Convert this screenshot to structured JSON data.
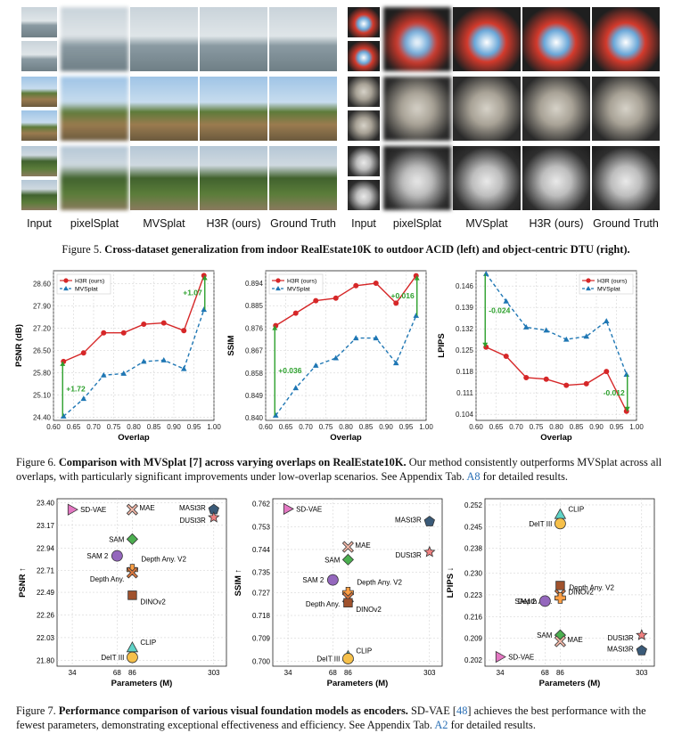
{
  "fig5": {
    "left_labels": [
      "Input",
      "pixelSplat",
      "MVSplat",
      "H3R (ours)",
      "Ground Truth"
    ],
    "right_labels": [
      "Input",
      "pixelSplat",
      "MVSplat",
      "H3R (ours)",
      "Ground Truth"
    ],
    "caption_prefix": "Figure 5.",
    "caption_bold": "Cross-dataset generalization from indoor RealEstate10K to outdoor ACID (left) and object-centric DTU (right)."
  },
  "fig6": {
    "caption_prefix": "Figure 6.",
    "caption_bold": "Comparison with MVSplat [7] across varying overlaps on RealEstate10K.",
    "caption_rest": " Our method consistently outperforms MVSplat across all overlaps, with particularly significant improvements under low-overlap scenarios. See Appendix Tab. ",
    "caption_link": "A8",
    "caption_end": " for detailed results."
  },
  "fig7": {
    "caption_prefix": "Figure 7.",
    "caption_bold": "Performance comparison of various visual foundation models as encoders.",
    "caption_rest1": " SD-VAE [",
    "caption_link1": "48",
    "caption_rest2": "] achieves the best performance with the fewest parameters, demonstrating exceptional effectiveness and efficiency. See Appendix Tab. ",
    "caption_link2": "A2",
    "caption_end": " for detailed results."
  },
  "colors": {
    "h3r": "#d62728",
    "mvsplat": "#1f77b4",
    "delta": "#2ca02c",
    "link": "#2a6fb5"
  },
  "chart_data": [
    {
      "type": "line",
      "id": "psnr_overlap",
      "xlabel": "Overlap",
      "ylabel": "PSNR (dB)",
      "xlim": [
        0.6,
        1.0
      ],
      "ylim": [
        24.3,
        29.0
      ],
      "xticks": [
        "0.60",
        "0.65",
        "0.70",
        "0.75",
        "0.80",
        "0.85",
        "0.90",
        "0.95",
        "1.00"
      ],
      "yticks": [
        "24.40",
        "25.10",
        "25.80",
        "26.50",
        "27.20",
        "27.90",
        "28.60"
      ],
      "grid": true,
      "legend": "top-left",
      "x": [
        0.625,
        0.675,
        0.725,
        0.775,
        0.825,
        0.875,
        0.925,
        0.975
      ],
      "series": [
        {
          "name": "H3R (ours)",
          "marker": "circle",
          "style": "solid",
          "values": [
            26.15,
            26.42,
            27.05,
            27.05,
            27.32,
            27.36,
            27.12,
            28.85
          ]
        },
        {
          "name": "MVSplat",
          "marker": "triangle",
          "style": "dashed",
          "values": [
            24.43,
            24.98,
            25.72,
            25.77,
            26.15,
            26.19,
            25.92,
            27.78
          ]
        }
      ],
      "annotations": [
        {
          "text": "+1.72",
          "x": 0.625
        },
        {
          "text": "+1.07",
          "x": 0.975
        }
      ]
    },
    {
      "type": "line",
      "id": "ssim_overlap",
      "xlabel": "Overlap",
      "ylabel": "SSIM",
      "xlim": [
        0.6,
        1.0
      ],
      "ylim": [
        0.839,
        0.899
      ],
      "xticks": [
        "0.60",
        "0.65",
        "0.70",
        "0.75",
        "0.80",
        "0.85",
        "0.90",
        "0.95",
        "1.00"
      ],
      "yticks": [
        "0.840",
        "0.849",
        "0.858",
        "0.867",
        "0.876",
        "0.885",
        "0.894"
      ],
      "grid": true,
      "legend": "top-left",
      "x": [
        0.625,
        0.675,
        0.725,
        0.775,
        0.825,
        0.875,
        0.925,
        0.975
      ],
      "series": [
        {
          "name": "H3R (ours)",
          "marker": "circle",
          "style": "solid",
          "values": [
            0.877,
            0.882,
            0.887,
            0.888,
            0.893,
            0.894,
            0.886,
            0.897
          ]
        },
        {
          "name": "MVSplat",
          "marker": "triangle",
          "style": "dashed",
          "values": [
            0.841,
            0.852,
            0.861,
            0.864,
            0.872,
            0.872,
            0.862,
            0.881
          ]
        }
      ],
      "annotations": [
        {
          "text": "+0.036",
          "x": 0.625
        },
        {
          "text": "+0.016",
          "x": 0.975
        }
      ]
    },
    {
      "type": "line",
      "id": "lpips_overlap",
      "xlabel": "Overlap",
      "ylabel": "LPIPS",
      "xlim": [
        0.6,
        1.0
      ],
      "ylim": [
        0.102,
        0.151
      ],
      "xticks": [
        "0.60",
        "0.65",
        "0.70",
        "0.75",
        "0.80",
        "0.85",
        "0.90",
        "0.95",
        "1.00"
      ],
      "yticks": [
        "0.104",
        "0.111",
        "0.118",
        "0.125",
        "0.132",
        "0.139",
        "0.146"
      ],
      "grid": true,
      "legend": "top-right",
      "x": [
        0.625,
        0.675,
        0.725,
        0.775,
        0.825,
        0.875,
        0.925,
        0.975
      ],
      "series": [
        {
          "name": "H3R (ours)",
          "marker": "circle",
          "style": "solid",
          "values": [
            0.126,
            0.123,
            0.116,
            0.1155,
            0.1135,
            0.114,
            0.118,
            0.105
          ]
        },
        {
          "name": "MVSplat",
          "marker": "triangle",
          "style": "dashed",
          "values": [
            0.15,
            0.141,
            0.1325,
            0.1315,
            0.1285,
            0.1295,
            0.1345,
            0.117
          ]
        }
      ],
      "annotations": [
        {
          "text": "-0.024",
          "x": 0.625
        },
        {
          "text": "-0.012",
          "x": 0.975
        }
      ]
    },
    {
      "type": "scatter",
      "id": "psnr_params",
      "xlabel": "Parameters (M)",
      "ylabel": "PSNR ↑",
      "xscale": "log",
      "xticks": [
        "34",
        "68",
        "86",
        "303"
      ],
      "yticks": [
        "21.80",
        "22.03",
        "22.26",
        "22.49",
        "22.71",
        "22.94",
        "23.17",
        "23.40"
      ],
      "ylim": [
        21.74,
        23.44
      ],
      "grid": true,
      "points": [
        {
          "label": "SD-VAE",
          "x": 34,
          "y": 23.33,
          "marker": "triangle-right",
          "color": "#e377c2"
        },
        {
          "label": "MAE",
          "x": 86,
          "y": 23.33,
          "marker": "x",
          "color": "#f2b8a8"
        },
        {
          "label": "MASt3R",
          "x": 303,
          "y": 23.33,
          "marker": "pentagon",
          "color": "#3a5a78"
        },
        {
          "label": "DUSt3R",
          "x": 303,
          "y": 23.25,
          "marker": "star",
          "color": "#f08080"
        },
        {
          "label": "SAM",
          "x": 86,
          "y": 23.03,
          "marker": "diamond",
          "color": "#4caf50"
        },
        {
          "label": "SAM 2",
          "x": 68,
          "y": 22.86,
          "marker": "circle",
          "color": "#9467bd"
        },
        {
          "label": "Depth Any. V2",
          "x": 86,
          "y": 22.72,
          "marker": "plus",
          "color": "#ff9f43"
        },
        {
          "label": "Depth Any.",
          "x": 86,
          "y": 22.69,
          "marker": "x",
          "color": "#d9773e"
        },
        {
          "label": "DINOv2",
          "x": 86,
          "y": 22.46,
          "marker": "square",
          "color": "#a0522d"
        },
        {
          "label": "CLIP",
          "x": 86,
          "y": 21.93,
          "marker": "triangle",
          "color": "#5fd3c7"
        },
        {
          "label": "DeIT III",
          "x": 86,
          "y": 21.83,
          "marker": "circle",
          "color": "#f6c04a"
        }
      ]
    },
    {
      "type": "scatter",
      "id": "ssim_params",
      "xlabel": "Parameters (M)",
      "ylabel": "SSIM ↑",
      "xscale": "log",
      "xticks": [
        "34",
        "68",
        "86",
        "303"
      ],
      "yticks": [
        "0.700",
        "0.709",
        "0.718",
        "0.727",
        "0.735",
        "0.744",
        "0.753",
        "0.762"
      ],
      "ylim": [
        0.698,
        0.764
      ],
      "grid": true,
      "points": [
        {
          "label": "SD-VAE",
          "x": 34,
          "y": 0.76,
          "marker": "triangle-right",
          "color": "#e377c2"
        },
        {
          "label": "MASt3R",
          "x": 303,
          "y": 0.755,
          "marker": "pentagon",
          "color": "#3a5a78"
        },
        {
          "label": "MAE",
          "x": 86,
          "y": 0.745,
          "marker": "x",
          "color": "#f2b8a8"
        },
        {
          "label": "DUSt3R",
          "x": 303,
          "y": 0.743,
          "marker": "star",
          "color": "#f08080"
        },
        {
          "label": "SAM",
          "x": 86,
          "y": 0.74,
          "marker": "diamond",
          "color": "#4caf50"
        },
        {
          "label": "SAM 2",
          "x": 68,
          "y": 0.732,
          "marker": "circle",
          "color": "#9467bd"
        },
        {
          "label": "Depth Any. V2",
          "x": 86,
          "y": 0.727,
          "marker": "plus",
          "color": "#ff9f43"
        },
        {
          "label": "Depth Any.",
          "x": 86,
          "y": 0.725,
          "marker": "x",
          "color": "#d9773e"
        },
        {
          "label": "DINOv2",
          "x": 86,
          "y": 0.723,
          "marker": "square",
          "color": "#a0522d"
        },
        {
          "label": "CLIP",
          "x": 86,
          "y": 0.702,
          "marker": "triangle",
          "color": "#5fd3c7"
        },
        {
          "label": "DeIT III",
          "x": 86,
          "y": 0.701,
          "marker": "circle",
          "color": "#f6c04a"
        }
      ]
    },
    {
      "type": "scatter",
      "id": "lpips_params",
      "xlabel": "Parameters (M)",
      "ylabel": "LPIPS ↓",
      "xscale": "log",
      "xticks": [
        "34",
        "68",
        "86",
        "303"
      ],
      "yticks": [
        "0.202",
        "0.209",
        "0.216",
        "0.223",
        "0.230",
        "0.238",
        "0.245",
        "0.252"
      ],
      "ylim": [
        0.2,
        0.254
      ],
      "grid": true,
      "points": [
        {
          "label": "CLIP",
          "x": 86,
          "y": 0.249,
          "marker": "triangle",
          "color": "#5fd3c7"
        },
        {
          "label": "DeIT III",
          "x": 86,
          "y": 0.246,
          "marker": "circle",
          "color": "#f6c04a"
        },
        {
          "label": "DINOv2",
          "x": 86,
          "y": 0.226,
          "marker": "square",
          "color": "#a0522d"
        },
        {
          "label": "Depth Any.",
          "x": 86,
          "y": 0.223,
          "marker": "x",
          "color": "#d9773e"
        },
        {
          "label": "Depth Any. V2",
          "x": 86,
          "y": 0.222,
          "marker": "plus",
          "color": "#ff9f43"
        },
        {
          "label": "SAM 2",
          "x": 68,
          "y": 0.221,
          "marker": "circle",
          "color": "#9467bd"
        },
        {
          "label": "DUSt3R",
          "x": 303,
          "y": 0.21,
          "marker": "star",
          "color": "#f08080"
        },
        {
          "label": "SAM",
          "x": 86,
          "y": 0.21,
          "marker": "diamond",
          "color": "#4caf50"
        },
        {
          "label": "MAE",
          "x": 86,
          "y": 0.208,
          "marker": "x",
          "color": "#f2b8a8"
        },
        {
          "label": "MASt3R",
          "x": 303,
          "y": 0.205,
          "marker": "pentagon",
          "color": "#3a5a78"
        },
        {
          "label": "SD-VAE",
          "x": 34,
          "y": 0.203,
          "marker": "triangle-right",
          "color": "#e377c2"
        }
      ]
    }
  ]
}
